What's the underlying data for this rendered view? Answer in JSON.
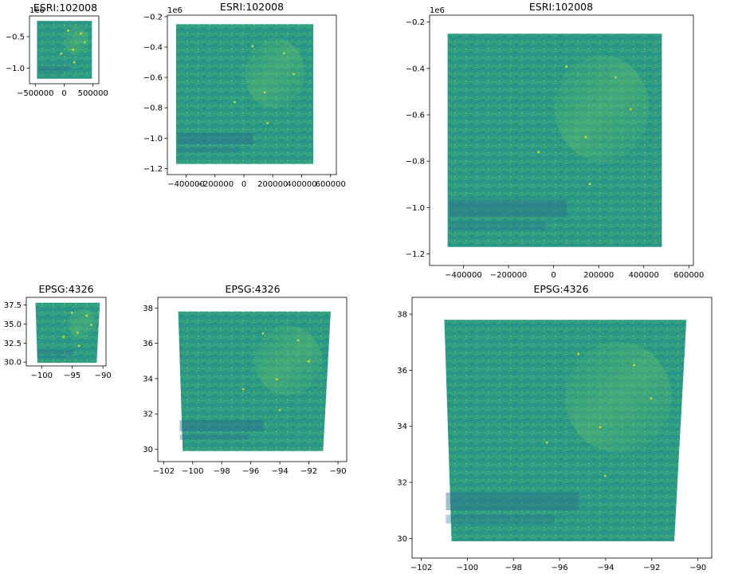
{
  "colors": {
    "frame": "#000000",
    "data_base": "#2a9a85",
    "data_light": "#5fbf6e",
    "data_dark": "#2c6f8e",
    "highlight": "#c9d93a"
  },
  "chart_data": [
    {
      "type": "heatmap",
      "title": "ESRI:102008",
      "xlim": [
        -600000,
        600000
      ],
      "ylim": [
        -1250000,
        -170000
      ],
      "xticks": [
        -500000,
        0,
        500000
      ],
      "xtick_labels": [
        "−500000",
        "0",
        "500000"
      ],
      "yticks": [
        -1000000,
        -500000
      ],
      "ytick_labels": [
        "−1.0",
        "−0.5"
      ],
      "offset": "1e6",
      "extent": [
        -470000,
        480000,
        -1170000,
        -250000
      ]
    },
    {
      "type": "heatmap",
      "title": "ESRI:102008",
      "xlim": [
        -530000,
        640000
      ],
      "ylim": [
        -1240000,
        -190000
      ],
      "xticks": [
        -400000,
        -200000,
        0,
        200000,
        400000,
        600000
      ],
      "xtick_labels": [
        "−400000",
        "−200000",
        "0",
        "200000",
        "400000",
        "600000"
      ],
      "yticks": [
        -1200000,
        -1000000,
        -800000,
        -600000,
        -400000,
        -200000
      ],
      "ytick_labels": [
        "−1.2",
        "−1.0",
        "−0.8",
        "−0.6",
        "−0.4",
        "−0.2"
      ],
      "offset": "1e6",
      "extent": [
        -470000,
        480000,
        -1170000,
        -250000
      ]
    },
    {
      "type": "heatmap",
      "title": "ESRI:102008",
      "xlim": [
        -550000,
        620000
      ],
      "ylim": [
        -1250000,
        -170000
      ],
      "xticks": [
        -400000,
        -200000,
        0,
        200000,
        400000,
        600000
      ],
      "xtick_labels": [
        "−400000",
        "−200000",
        "0",
        "200000",
        "400000",
        "600000"
      ],
      "yticks": [
        -1200000,
        -1000000,
        -800000,
        -600000,
        -400000,
        -200000
      ],
      "ytick_labels": [
        "−1.2",
        "−1.0",
        "−0.8",
        "−0.6",
        "−0.4",
        "−0.2"
      ],
      "offset": "1e6",
      "extent": [
        -470000,
        480000,
        -1170000,
        -250000
      ]
    },
    {
      "type": "heatmap",
      "title": "EPSG:4326",
      "xlim": [
        -102.5,
        -89.5
      ],
      "ylim": [
        29.5,
        38.5
      ],
      "xticks": [
        -100,
        -95,
        -90
      ],
      "xtick_labels": [
        "−100",
        "−95",
        "−90"
      ],
      "yticks": [
        30,
        32.5,
        35,
        37.5
      ],
      "ytick_labels": [
        "30.0",
        "32.5",
        "35.0",
        "37.5"
      ],
      "offset": "",
      "extent": [
        -101.0,
        -90.5,
        29.9,
        37.8
      ]
    },
    {
      "type": "heatmap",
      "title": "EPSG:4326",
      "xlim": [
        -102.4,
        -89.4
      ],
      "ylim": [
        29.3,
        38.6
      ],
      "xticks": [
        -102,
        -100,
        -98,
        -96,
        -94,
        -92,
        -90
      ],
      "xtick_labels": [
        "−102",
        "−100",
        "−98",
        "−96",
        "−94",
        "−92",
        "−90"
      ],
      "yticks": [
        30,
        32,
        34,
        36,
        38
      ],
      "ytick_labels": [
        "30",
        "32",
        "34",
        "36",
        "38"
      ],
      "offset": "",
      "extent": [
        -101.0,
        -90.5,
        29.9,
        37.8
      ]
    },
    {
      "type": "heatmap",
      "title": "EPSG:4326",
      "xlim": [
        -102.4,
        -89.4
      ],
      "ylim": [
        29.3,
        38.6
      ],
      "xticks": [
        -102,
        -100,
        -98,
        -96,
        -94,
        -92,
        -90
      ],
      "xtick_labels": [
        "−102",
        "−100",
        "−98",
        "−96",
        "−94",
        "−92",
        "−90"
      ],
      "yticks": [
        30,
        32,
        34,
        36,
        38
      ],
      "ytick_labels": [
        "30",
        "32",
        "34",
        "36",
        "38"
      ],
      "offset": "",
      "extent": [
        -101.0,
        -90.5,
        29.9,
        37.8
      ]
    }
  ]
}
